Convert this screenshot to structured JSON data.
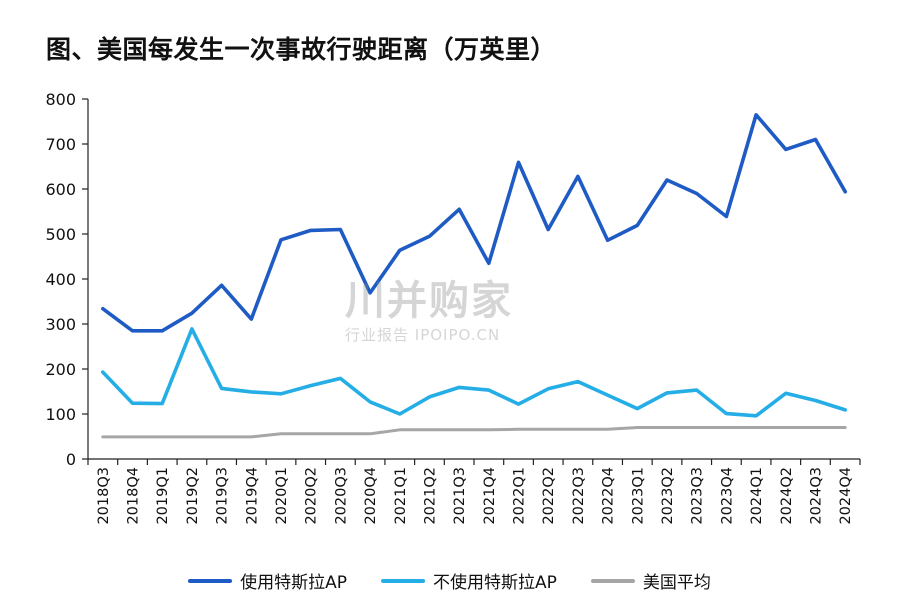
{
  "chart_data": {
    "type": "line",
    "title": "图、美国每发生一次事故行驶距离（万英里）",
    "xlabel": "",
    "ylabel": "",
    "ylim": [
      0,
      800
    ],
    "yticks": [
      0,
      100,
      200,
      300,
      400,
      500,
      600,
      700,
      800
    ],
    "grid": false,
    "legend_position": "bottom",
    "categories": [
      "2018Q3",
      "2018Q4",
      "2019Q1",
      "2019Q2",
      "2019Q3",
      "2019Q4",
      "2020Q1",
      "2020Q2",
      "2020Q3",
      "2020Q4",
      "2021Q1",
      "2021Q2",
      "2021Q3",
      "2021Q4",
      "2022Q1",
      "2022Q2",
      "2022Q3",
      "2022Q4",
      "2023Q1",
      "2023Q2",
      "2023Q3",
      "2023Q4",
      "2024Q1",
      "2024Q2",
      "2024Q3",
      "2024Q4"
    ],
    "series": [
      {
        "name": "使用特斯拉AP",
        "color": "#1f5bc4",
        "values": [
          334,
          285,
          285,
          324,
          386,
          311,
          487,
          508,
          510,
          369,
          464,
          495,
          555,
          435,
          659,
          510,
          628,
          486,
          519,
          620,
          590,
          539,
          765,
          688,
          710,
          594
        ]
      },
      {
        "name": "不使用特斯拉AP",
        "color": "#25aee6",
        "values": [
          193,
          124,
          123,
          289,
          157,
          149,
          145,
          163,
          179,
          127,
          100,
          138,
          159,
          153,
          122,
          156,
          172,
          142,
          112,
          147,
          153,
          101,
          96,
          146,
          130,
          109
        ]
      },
      {
        "name": "美国平均",
        "color": "#a6a6a6",
        "values": [
          49,
          49,
          49,
          49,
          49,
          49,
          56,
          56,
          56,
          56,
          65,
          65,
          65,
          65,
          66,
          66,
          66,
          66,
          70,
          70,
          70,
          70,
          70,
          70,
          70,
          70
        ]
      }
    ]
  },
  "watermark": {
    "main": "川并购家",
    "sub": "行业报告 IPOIPO.CN"
  }
}
